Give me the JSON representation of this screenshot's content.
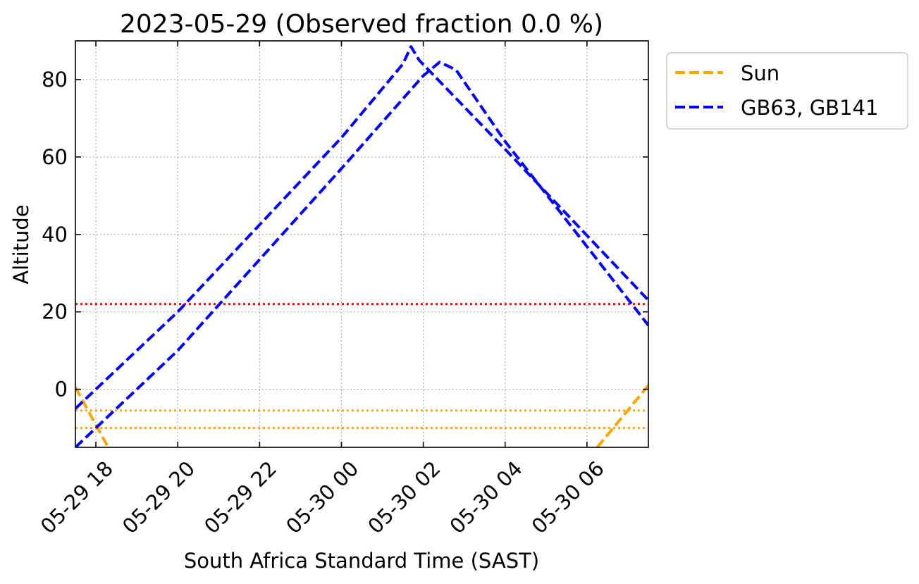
{
  "chart_data": {
    "type": "line",
    "title": "2023-05-29 (Observed fraction 0.0 %)",
    "xlabel": "South Africa Standard Time (SAST)",
    "ylabel": "Altitude",
    "xlim": [
      "2023-05-29T17:30",
      "2023-05-30T07:30"
    ],
    "ylim": [
      -15,
      90
    ],
    "x_tick_labels": [
      "05-29 18",
      "05-29 20",
      "05-29 22",
      "05-30 00",
      "05-30 02",
      "05-30 04",
      "05-30 06"
    ],
    "x_ticks": [
      "2023-05-29T18:00",
      "2023-05-29T20:00",
      "2023-05-29T22:00",
      "2023-05-30T00:00",
      "2023-05-30T02:00",
      "2023-05-30T04:00",
      "2023-05-30T06:00"
    ],
    "y_ticks": [
      0,
      20,
      40,
      60,
      80
    ],
    "grid": true,
    "legend_position": "outside-upper-right",
    "legend": [
      "Sun",
      "GB63, GB141"
    ],
    "series": [
      {
        "name": "Sun",
        "color": "#ffa500",
        "style": "dashed",
        "segments": [
          {
            "x": [
              "2023-05-29T17:30",
              "2023-05-29T18:18"
            ],
            "y": [
              0.5,
              -15
            ]
          },
          {
            "x": [
              "2023-05-30T06:15",
              "2023-05-30T07:30"
            ],
            "y": [
              -15,
              1
            ]
          }
        ]
      },
      {
        "name": "GB63, GB141",
        "color": "#0000ff",
        "style": "dashed",
        "segments": [
          {
            "x": [
              "2023-05-29T17:30",
              "2023-05-29T20:00",
              "2023-05-30T00:00",
              "2023-05-30T01:30",
              "2023-05-30T01:42",
              "2023-05-30T01:54",
              "2023-05-30T04:00",
              "2023-05-30T07:30"
            ],
            "y": [
              -5,
              20,
              65,
              84,
              88.5,
              85,
              62,
              23
            ]
          },
          {
            "x": [
              "2023-05-29T17:30",
              "2023-05-29T20:00",
              "2023-05-30T00:00",
              "2023-05-30T02:00",
              "2023-05-30T02:24",
              "2023-05-30T02:48",
              "2023-05-30T04:00",
              "2023-05-30T07:30"
            ],
            "y": [
              -15,
              10,
              57,
              81,
              84.5,
              82.5,
              64,
              16.5
            ]
          }
        ]
      }
    ],
    "horizontal_lines": [
      {
        "y": 22,
        "color": "#ff0000",
        "style": "dotted"
      },
      {
        "y": -5.5,
        "color": "#ffa500",
        "style": "dotted"
      },
      {
        "y": -10,
        "color": "#ffa500",
        "style": "dotted"
      }
    ]
  }
}
